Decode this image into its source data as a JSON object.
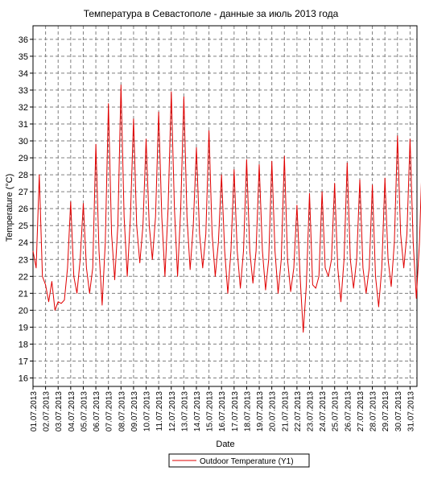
{
  "chart_data": {
    "type": "line",
    "title": "Температура в Севастополе - данные за июль 2013 года",
    "xlabel": "Date",
    "ylabel": "Temperature (°C)",
    "ylim": [
      15.5,
      36.8
    ],
    "y_ticks": [
      16,
      17,
      18,
      19,
      20,
      21,
      22,
      23,
      24,
      25,
      26,
      27,
      28,
      29,
      30,
      31,
      32,
      33,
      34,
      35,
      36
    ],
    "x_ticks": [
      "01.07.2013",
      "02.07.2013",
      "03.07.2013",
      "04.07.2013",
      "05.07.2013",
      "06.07.2013",
      "07.07.2013",
      "08.07.2013",
      "09.07.2013",
      "10.07.2013",
      "11.07.2013",
      "12.07.2013",
      "13.07.2013",
      "14.07.2013",
      "15.07.2013",
      "16.07.2013",
      "17.07.2013",
      "18.07.2013",
      "19.07.2013",
      "20.07.2013",
      "21.07.2013",
      "22.07.2013",
      "23.07.2013",
      "24.07.2013",
      "25.07.2013",
      "26.07.2013",
      "27.07.2013",
      "28.07.2013",
      "29.07.2013",
      "30.07.2013",
      "31.07.2013"
    ],
    "grid": true,
    "legend_placement": "bottom-center",
    "series": [
      {
        "name": "Outdoor Temperature (Y1)",
        "color": "#e00000",
        "x": [
          0,
          0.25,
          0.5,
          0.75,
          1.0,
          1.25,
          1.5,
          1.75,
          2.0,
          2.25,
          2.5,
          2.75,
          3.0,
          3.25,
          3.5,
          3.75,
          4.0,
          4.25,
          4.5,
          4.75,
          5.0,
          5.25,
          5.5,
          5.75,
          6.0,
          6.25,
          6.5,
          6.75,
          7.0,
          7.25,
          7.5,
          7.75,
          8.0,
          8.25,
          8.5,
          8.75,
          9.0,
          9.25,
          9.5,
          9.75,
          10.0,
          10.25,
          10.5,
          10.75,
          11.0,
          11.25,
          11.5,
          11.75,
          12.0,
          12.25,
          12.5,
          12.75,
          13.0,
          13.25,
          13.5,
          13.75,
          14.0,
          14.25,
          14.5,
          14.75,
          15.0,
          15.25,
          15.5,
          15.75,
          16.0,
          16.25,
          16.5,
          16.75,
          17.0,
          17.25,
          17.5,
          17.75,
          18.0,
          18.25,
          18.5,
          18.75,
          19.0,
          19.25,
          19.5,
          19.75,
          20.0,
          20.25,
          20.5,
          20.75,
          21.0,
          21.25,
          21.5,
          21.75,
          22.0,
          22.25,
          22.5,
          22.75,
          23.0,
          23.25,
          23.5,
          23.75,
          24.0,
          24.25,
          24.5,
          24.75,
          25.0,
          25.25,
          25.5,
          25.75,
          26.0,
          26.25,
          26.5,
          26.75,
          27.0,
          27.25,
          27.5,
          27.75,
          28.0,
          28.25,
          28.5,
          28.75,
          29.0,
          29.25,
          29.5,
          29.75,
          30.0,
          30.25,
          30.5,
          30.75,
          31.0
        ],
        "values": [
          23.5,
          22.5,
          28.0,
          22.0,
          21.5,
          20.5,
          21.7,
          20.0,
          20.5,
          20.4,
          20.6,
          22.5,
          26.4,
          22.0,
          21.0,
          23.0,
          26.3,
          22.5,
          21.0,
          22.5,
          29.8,
          23.5,
          20.3,
          24.0,
          32.2,
          24.5,
          21.8,
          25.0,
          33.3,
          25.5,
          22.0,
          25.5,
          31.3,
          25.0,
          22.8,
          25.0,
          30.1,
          25.0,
          23.0,
          25.5,
          31.7,
          25.5,
          22.0,
          26.0,
          32.9,
          26.0,
          22.0,
          26.0,
          32.6,
          25.5,
          22.4,
          25.0,
          29.6,
          24.5,
          22.5,
          24.5,
          30.6,
          24.5,
          22.0,
          24.0,
          28.0,
          23.5,
          21.0,
          23.5,
          28.3,
          23.5,
          21.3,
          23.5,
          28.9,
          23.5,
          21.6,
          23.5,
          28.6,
          23.5,
          21.2,
          23.0,
          28.8,
          23.5,
          21.0,
          23.0,
          29.1,
          23.0,
          21.1,
          22.5,
          26.2,
          22.0,
          18.7,
          21.5,
          26.9,
          21.5,
          21.3,
          22.0,
          27.0,
          22.5,
          22.0,
          23.0,
          27.5,
          22.5,
          20.5,
          23.0,
          28.7,
          23.0,
          21.3,
          23.0,
          27.7,
          22.5,
          21.0,
          22.5,
          27.4,
          22.0,
          20.2,
          22.5,
          27.8,
          23.0,
          21.4,
          24.0,
          30.3,
          24.5,
          22.5,
          24.5,
          30.1,
          24.0,
          20.7,
          24.0,
          29.8
        ]
      }
    ]
  }
}
